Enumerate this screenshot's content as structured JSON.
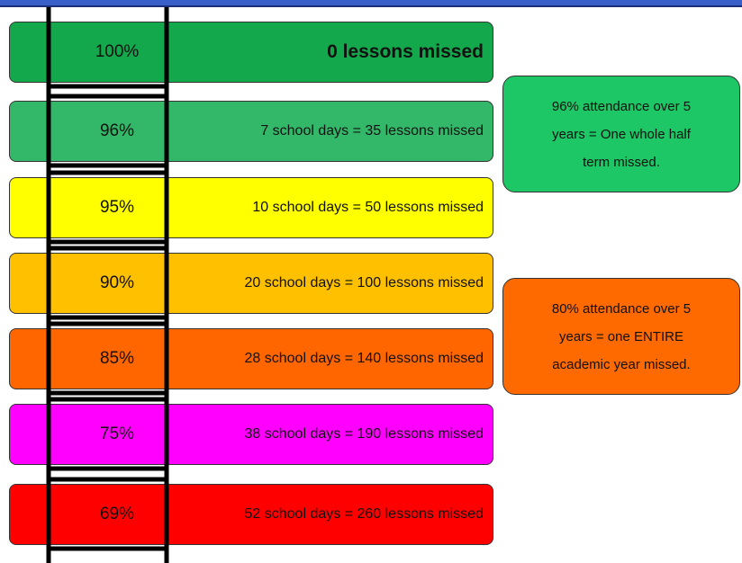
{
  "rows": [
    {
      "percent": "100%",
      "text": "0 lessons missed",
      "color": "#14a84c"
    },
    {
      "percent": "96%",
      "text": "7 school days = 35 lessons missed",
      "color": "#33b86a"
    },
    {
      "percent": "95%",
      "text": "10 school days = 50 lessons missed",
      "color": "#ffff00"
    },
    {
      "percent": "90%",
      "text": "20 school days = 100 lessons missed",
      "color": "#ffc000"
    },
    {
      "percent": "85%",
      "text": "28 school days = 140 lessons missed",
      "color": "#ff6600"
    },
    {
      "percent": "75%",
      "text": "38 school days = 190 lessons missed",
      "color": "#ff00ff"
    },
    {
      "percent": "69%",
      "text": "52 school days = 260 lessons missed",
      "color": "#ff0000"
    }
  ],
  "callouts": [
    {
      "lines": [
        "96% attendance over 5",
        "years = One whole half",
        "term missed."
      ],
      "color": "#1ec765"
    },
    {
      "lines": [
        "80% attendance over 5",
        "years = one ENTIRE",
        "academic year missed."
      ],
      "color": "#ff6a00"
    }
  ]
}
